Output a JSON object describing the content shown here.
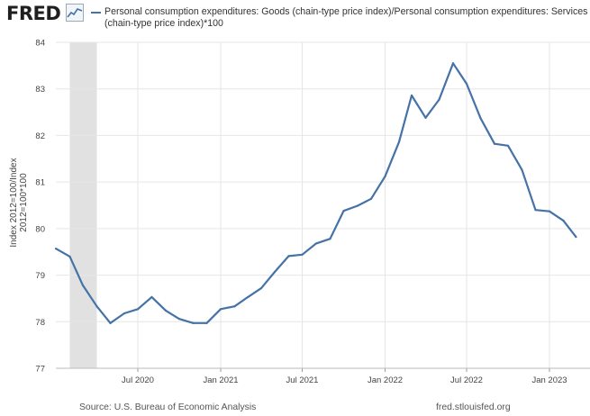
{
  "header": {
    "logo_text": "FRED",
    "logo_icon": "line-chart-icon",
    "legend_text": "Personal consumption expenditures: Goods (chain-type price index)/Personal consumption expenditures: Services (chain-type price index)*100"
  },
  "colors": {
    "series": "#4572a7",
    "recession": "#e1e1e1",
    "grid": "#e6e6e6"
  },
  "footer": {
    "source": "Source: U.S. Bureau of Economic Analysis",
    "site": "fred.stlouisfed.org"
  },
  "chart_data": {
    "type": "line",
    "ylabel": "Index 2012=100/Index 2012=100*100",
    "xlabel": "",
    "ylim": [
      77,
      84
    ],
    "yticks": [
      77,
      78,
      79,
      80,
      81,
      82,
      83,
      84
    ],
    "xlim": [
      "2020-01-01",
      "2023-04-01"
    ],
    "xticks": [
      {
        "date": "2020-07-01",
        "label": "Jul 2020"
      },
      {
        "date": "2021-01-01",
        "label": "Jan 2021"
      },
      {
        "date": "2021-07-01",
        "label": "Jul 2021"
      },
      {
        "date": "2022-01-01",
        "label": "Jan 2022"
      },
      {
        "date": "2022-07-01",
        "label": "Jul 2022"
      },
      {
        "date": "2023-01-01",
        "label": "Jan 2023"
      }
    ],
    "recession": {
      "start": "2020-02-01",
      "end": "2020-04-01"
    },
    "grid": true,
    "series": [
      {
        "x": [
          "2020-01-01",
          "2020-02-01",
          "2020-03-01",
          "2020-04-01",
          "2020-05-01",
          "2020-06-01",
          "2020-07-01",
          "2020-08-01",
          "2020-09-01",
          "2020-10-01",
          "2020-11-01",
          "2020-12-01",
          "2021-01-01",
          "2021-02-01",
          "2021-03-01",
          "2021-04-01",
          "2021-05-01",
          "2021-06-01",
          "2021-07-01",
          "2021-08-01",
          "2021-09-01",
          "2021-10-01",
          "2021-11-01",
          "2021-12-01",
          "2022-01-01",
          "2022-02-01",
          "2022-03-01",
          "2022-04-01",
          "2022-05-01",
          "2022-06-01",
          "2022-07-01",
          "2022-08-01",
          "2022-09-01",
          "2022-10-01",
          "2022-11-01",
          "2022-12-01",
          "2023-01-01",
          "2023-02-01",
          "2023-03-01"
        ],
        "y": [
          79.57,
          79.4,
          78.78,
          78.33,
          77.97,
          78.18,
          78.27,
          78.53,
          78.24,
          78.06,
          77.97,
          77.97,
          78.27,
          78.33,
          78.52,
          78.72,
          79.07,
          79.41,
          79.44,
          79.68,
          79.78,
          80.38,
          80.49,
          80.64,
          81.12,
          81.86,
          82.86,
          82.38,
          82.77,
          83.55,
          83.11,
          82.37,
          81.82,
          81.78,
          81.26,
          80.4,
          80.37,
          80.17,
          79.82
        ]
      }
    ]
  }
}
